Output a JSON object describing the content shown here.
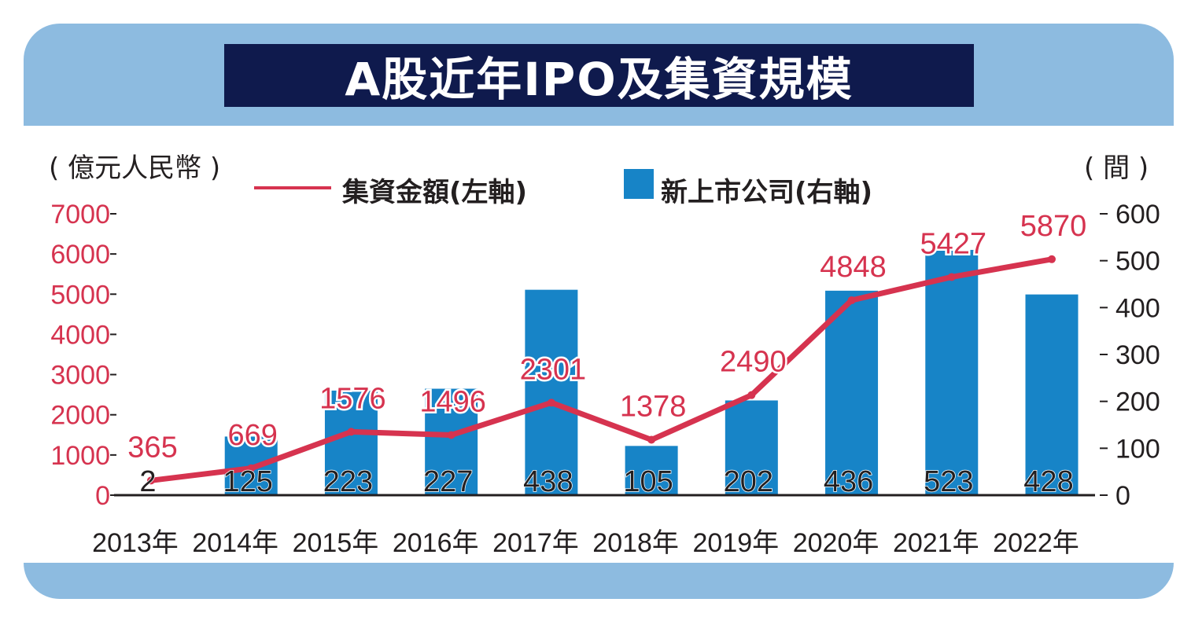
{
  "title": "A股近年IPO及集資規模",
  "unit_left": "( 億元人民幣 )",
  "unit_right": "( 間 )",
  "legend": {
    "line_label": "集資金額(左軸)",
    "bar_label": "新上市公司(右軸)"
  },
  "colors": {
    "frame": "#8dbbe0",
    "title_bg": "#0f1a4d",
    "line": "#d6334f",
    "bar": "#1784c7",
    "text": "#231f20"
  },
  "chart_data": {
    "type": "bar",
    "categories": [
      "2013年",
      "2014年",
      "2015年",
      "2016年",
      "2017年",
      "2018年",
      "2019年",
      "2020年",
      "2021年",
      "2022年"
    ],
    "series": [
      {
        "name": "集資金額(左軸)",
        "type": "line",
        "axis": "left",
        "values": [
          365,
          669,
          1576,
          1496,
          2301,
          1378,
          2490,
          4848,
          5427,
          5870
        ]
      },
      {
        "name": "新上市公司(右軸)",
        "type": "bar",
        "axis": "right",
        "values": [
          2,
          125,
          223,
          227,
          438,
          105,
          202,
          436,
          523,
          428
        ]
      }
    ],
    "left_axis": {
      "ticks": [
        "7000",
        "6000",
        "5000",
        "4000",
        "3000",
        "2000",
        "1000",
        "0"
      ],
      "ylim": [
        0,
        7000
      ]
    },
    "right_axis": {
      "ticks": [
        "600",
        "500",
        "400",
        "300",
        "200",
        "100",
        "0"
      ],
      "ylim": [
        0,
        600
      ]
    },
    "grid": false,
    "legend_position": "top"
  }
}
